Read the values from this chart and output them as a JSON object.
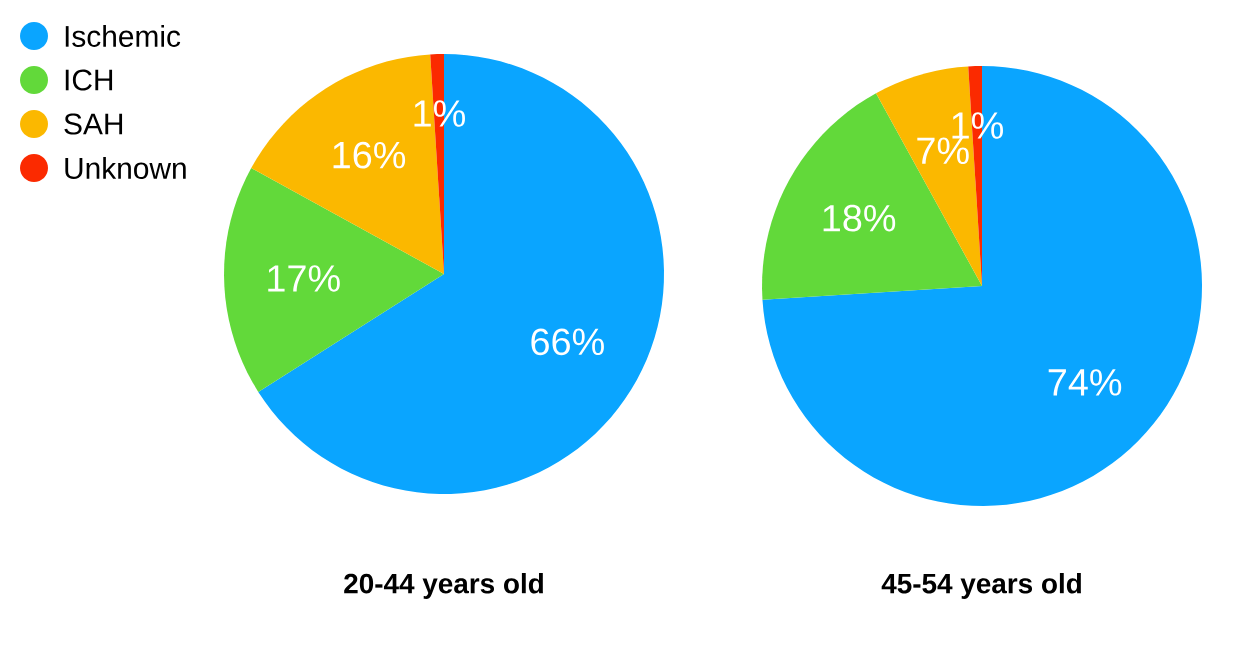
{
  "chart_data": [
    {
      "type": "pie",
      "title": "20-44 years old",
      "categories": [
        "Ischemic",
        "ICH",
        "SAH",
        "Unknown"
      ],
      "values": [
        66,
        17,
        16,
        1
      ],
      "value_labels": [
        "66%",
        "17%",
        "16%",
        "1%"
      ],
      "colors": [
        "#0aa5ff",
        "#62d93a",
        "#fbb800",
        "#fb2a00"
      ],
      "legend": "top left"
    },
    {
      "type": "pie",
      "title": "45-54 years old",
      "categories": [
        null,
        null,
        null,
        null
      ],
      "values": [
        74,
        18,
        7,
        1
      ],
      "value_labels": [
        "74%",
        "18%",
        "7%",
        "1%"
      ],
      "colors": [
        "#0aa5ff",
        "#62d93a",
        "#fbb800",
        "#fb2a00"
      ]
    }
  ]
}
